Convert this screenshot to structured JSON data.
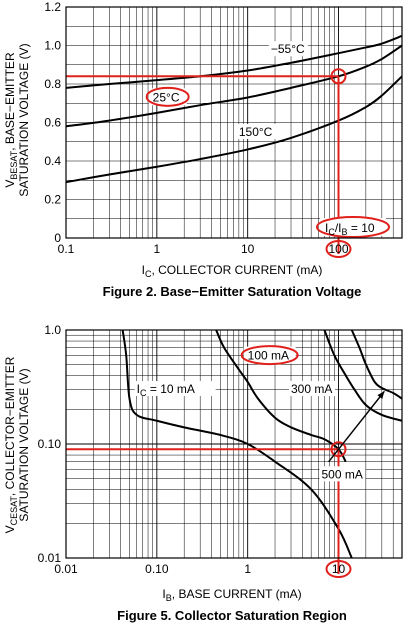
{
  "colors": {
    "curve": "#000000",
    "grid": "#000000",
    "highlight": "#e0201b",
    "background": "#ffffff"
  },
  "chart_data": [
    {
      "type": "line",
      "title": "Figure 2. Base−Emitter Saturation Voltage",
      "xlabel": "I_C, COLLECTOR CURRENT (mA)",
      "ylabel_line1": "V_BESAT, BASE−EMITTER",
      "ylabel_line2": "SATURATION VOLTAGE (V)",
      "x_scale": "log",
      "y_scale": "linear",
      "xlim": [
        0.1,
        500
      ],
      "ylim": [
        0,
        1.2
      ],
      "grid": true,
      "x_ticks": [
        "0.1",
        "1",
        "10",
        "100"
      ],
      "y_ticks": [
        "0",
        "0.2",
        "0.4",
        "0.6",
        "0.8",
        "1.0",
        "1.2"
      ],
      "series": [
        {
          "name": "−55°C",
          "x": [
            0.1,
            0.3,
            1,
            3,
            10,
            30,
            100,
            200,
            300,
            500
          ],
          "y": [
            0.78,
            0.8,
            0.82,
            0.84,
            0.87,
            0.91,
            0.96,
            0.99,
            1.01,
            1.05
          ]
        },
        {
          "name": "25°C",
          "x": [
            0.1,
            0.3,
            1,
            3,
            10,
            30,
            100,
            200,
            300,
            500
          ],
          "y": [
            0.58,
            0.61,
            0.65,
            0.69,
            0.73,
            0.78,
            0.84,
            0.89,
            0.93,
            1.0
          ]
        },
        {
          "name": "150°C",
          "x": [
            0.1,
            0.3,
            1,
            3,
            10,
            30,
            100,
            200,
            300,
            500
          ],
          "y": [
            0.29,
            0.33,
            0.37,
            0.41,
            0.46,
            0.52,
            0.61,
            0.68,
            0.74,
            0.84
          ]
        }
      ],
      "annotations": [
        {
          "text": "−55°C",
          "x": 18,
          "y": 0.96
        },
        {
          "text": "25°C",
          "x": 0.9,
          "y": 0.71,
          "circled": true
        },
        {
          "text": "150°C",
          "x": 8,
          "y": 0.53
        }
      ],
      "condition_label": "I_C/I_B = 10",
      "highlight": {
        "x": 100,
        "y": 0.84,
        "x_label": "100"
      }
    },
    {
      "type": "line",
      "title": "Figure 5. Collector Saturation Region",
      "xlabel": "I_B, BASE CURRENT (mA)",
      "ylabel_line1": "V_CESAT, COLLECTOR−EMITTER",
      "ylabel_line2": "SATURATION VOLTAGE (V)",
      "x_scale": "log",
      "y_scale": "log",
      "xlim": [
        0.01,
        50
      ],
      "ylim": [
        0.01,
        1.0
      ],
      "grid": true,
      "x_ticks": [
        "0.01",
        "0.10",
        "1",
        "10"
      ],
      "y_ticks": [
        "0.01",
        "0.10",
        "1.0"
      ],
      "series": [
        {
          "name": "I_C = 10 mA",
          "x": [
            0.042,
            0.046,
            0.05,
            0.06,
            0.1,
            0.2,
            0.5,
            1,
            2,
            5,
            10,
            14
          ],
          "y": [
            1.0,
            0.6,
            0.25,
            0.18,
            0.16,
            0.14,
            0.12,
            0.1,
            0.07,
            0.04,
            0.018,
            0.01
          ]
        },
        {
          "name": "100 mA",
          "x": [
            0.45,
            0.55,
            0.8,
            1,
            1.3,
            2,
            3,
            5,
            7,
            10,
            12
          ],
          "y": [
            1.0,
            0.7,
            0.45,
            0.35,
            0.25,
            0.17,
            0.14,
            0.12,
            0.11,
            0.09,
            0.07
          ]
        },
        {
          "name": "300 mA",
          "x": [
            7,
            9,
            12,
            15,
            20,
            30,
            50
          ],
          "y": [
            1.0,
            0.6,
            0.4,
            0.3,
            0.22,
            0.18,
            0.16
          ]
        },
        {
          "name": "500 mA",
          "x": [
            14,
            17,
            20,
            25,
            30,
            40,
            50
          ],
          "y": [
            1.0,
            0.7,
            0.5,
            0.35,
            0.31,
            0.28,
            0.25
          ]
        }
      ],
      "annotations": [
        {
          "text": "I_C = 10 mA",
          "x": 0.06,
          "y": 0.28
        },
        {
          "text": "100 mA",
          "x": 1.0,
          "y": 0.55,
          "circled": true
        },
        {
          "text": "300 mA",
          "x": 3.0,
          "y": 0.28
        },
        {
          "text": "500 mA",
          "x": 6.5,
          "y": 0.05
        }
      ],
      "highlight": {
        "x": 10,
        "y": 0.09,
        "x_label": "10"
      }
    }
  ]
}
